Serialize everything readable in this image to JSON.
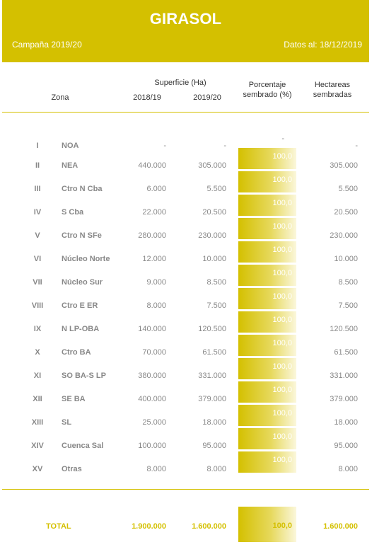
{
  "header": {
    "title": "GIRASOL",
    "campaign": "Campaña 2019/20",
    "date": "Datos al: 18/12/2019"
  },
  "columns": {
    "zona": "Zona",
    "superficie": "Superficie (Ha)",
    "year1": "2018/19",
    "year2": "2019/20",
    "porcentaje_line1": "Porcentaje",
    "porcentaje_line2": "sembrado (%)",
    "hectareas_line1": "Hectareas",
    "hectareas_line2": "sembradas"
  },
  "rows": [
    {
      "num": "I",
      "zona": "NOA",
      "y1": "-",
      "y2": "-",
      "pct": "-",
      "hect": "-"
    },
    {
      "num": "II",
      "zona": "NEA",
      "y1": "440.000",
      "y2": "305.000",
      "pct": "100,0",
      "hect": "305.000"
    },
    {
      "num": "III",
      "zona": "Ctro N Cba",
      "y1": "6.000",
      "y2": "5.500",
      "pct": "100,0",
      "hect": "5.500"
    },
    {
      "num": "IV",
      "zona": "S Cba",
      "y1": "22.000",
      "y2": "20.500",
      "pct": "100,0",
      "hect": "20.500"
    },
    {
      "num": "V",
      "zona": "Ctro N SFe",
      "y1": "280.000",
      "y2": "230.000",
      "pct": "100,0",
      "hect": "230.000"
    },
    {
      "num": "VI",
      "zona": "Núcleo Norte",
      "y1": "12.000",
      "y2": "10.000",
      "pct": "100,0",
      "hect": "10.000"
    },
    {
      "num": "VII",
      "zona": "Núcleo Sur",
      "y1": "9.000",
      "y2": "8.500",
      "pct": "100,0",
      "hect": "8.500"
    },
    {
      "num": "VIII",
      "zona": "Ctro E ER",
      "y1": "8.000",
      "y2": "7.500",
      "pct": "100,0",
      "hect": "7.500"
    },
    {
      "num": "IX",
      "zona": "N LP-OBA",
      "y1": "140.000",
      "y2": "120.500",
      "pct": "100,0",
      "hect": "120.500"
    },
    {
      "num": "X",
      "zona": "Ctro BA",
      "y1": "70.000",
      "y2": "61.500",
      "pct": "100,0",
      "hect": "61.500"
    },
    {
      "num": "XI",
      "zona": "SO BA-S LP",
      "y1": "380.000",
      "y2": "331.000",
      "pct": "100,0",
      "hect": "331.000"
    },
    {
      "num": "XII",
      "zona": "SE BA",
      "y1": "400.000",
      "y2": "379.000",
      "pct": "100,0",
      "hect": "379.000"
    },
    {
      "num": "XIII",
      "zona": "SL",
      "y1": "25.000",
      "y2": "18.000",
      "pct": "100,0",
      "hect": "18.000"
    },
    {
      "num": "XIV",
      "zona": "Cuenca Sal",
      "y1": "100.000",
      "y2": "95.000",
      "pct": "100,0",
      "hect": "95.000"
    },
    {
      "num": "XV",
      "zona": "Otras",
      "y1": "8.000",
      "y2": "8.000",
      "pct": "100,0",
      "hect": "8.000"
    }
  ],
  "total": {
    "label": "TOTAL",
    "y1": "1.900.000",
    "y2": "1.600.000",
    "pct": "100,0",
    "hect": "1.600.000"
  },
  "colors": {
    "accent": "#d4c000",
    "text_muted": "#888888"
  }
}
